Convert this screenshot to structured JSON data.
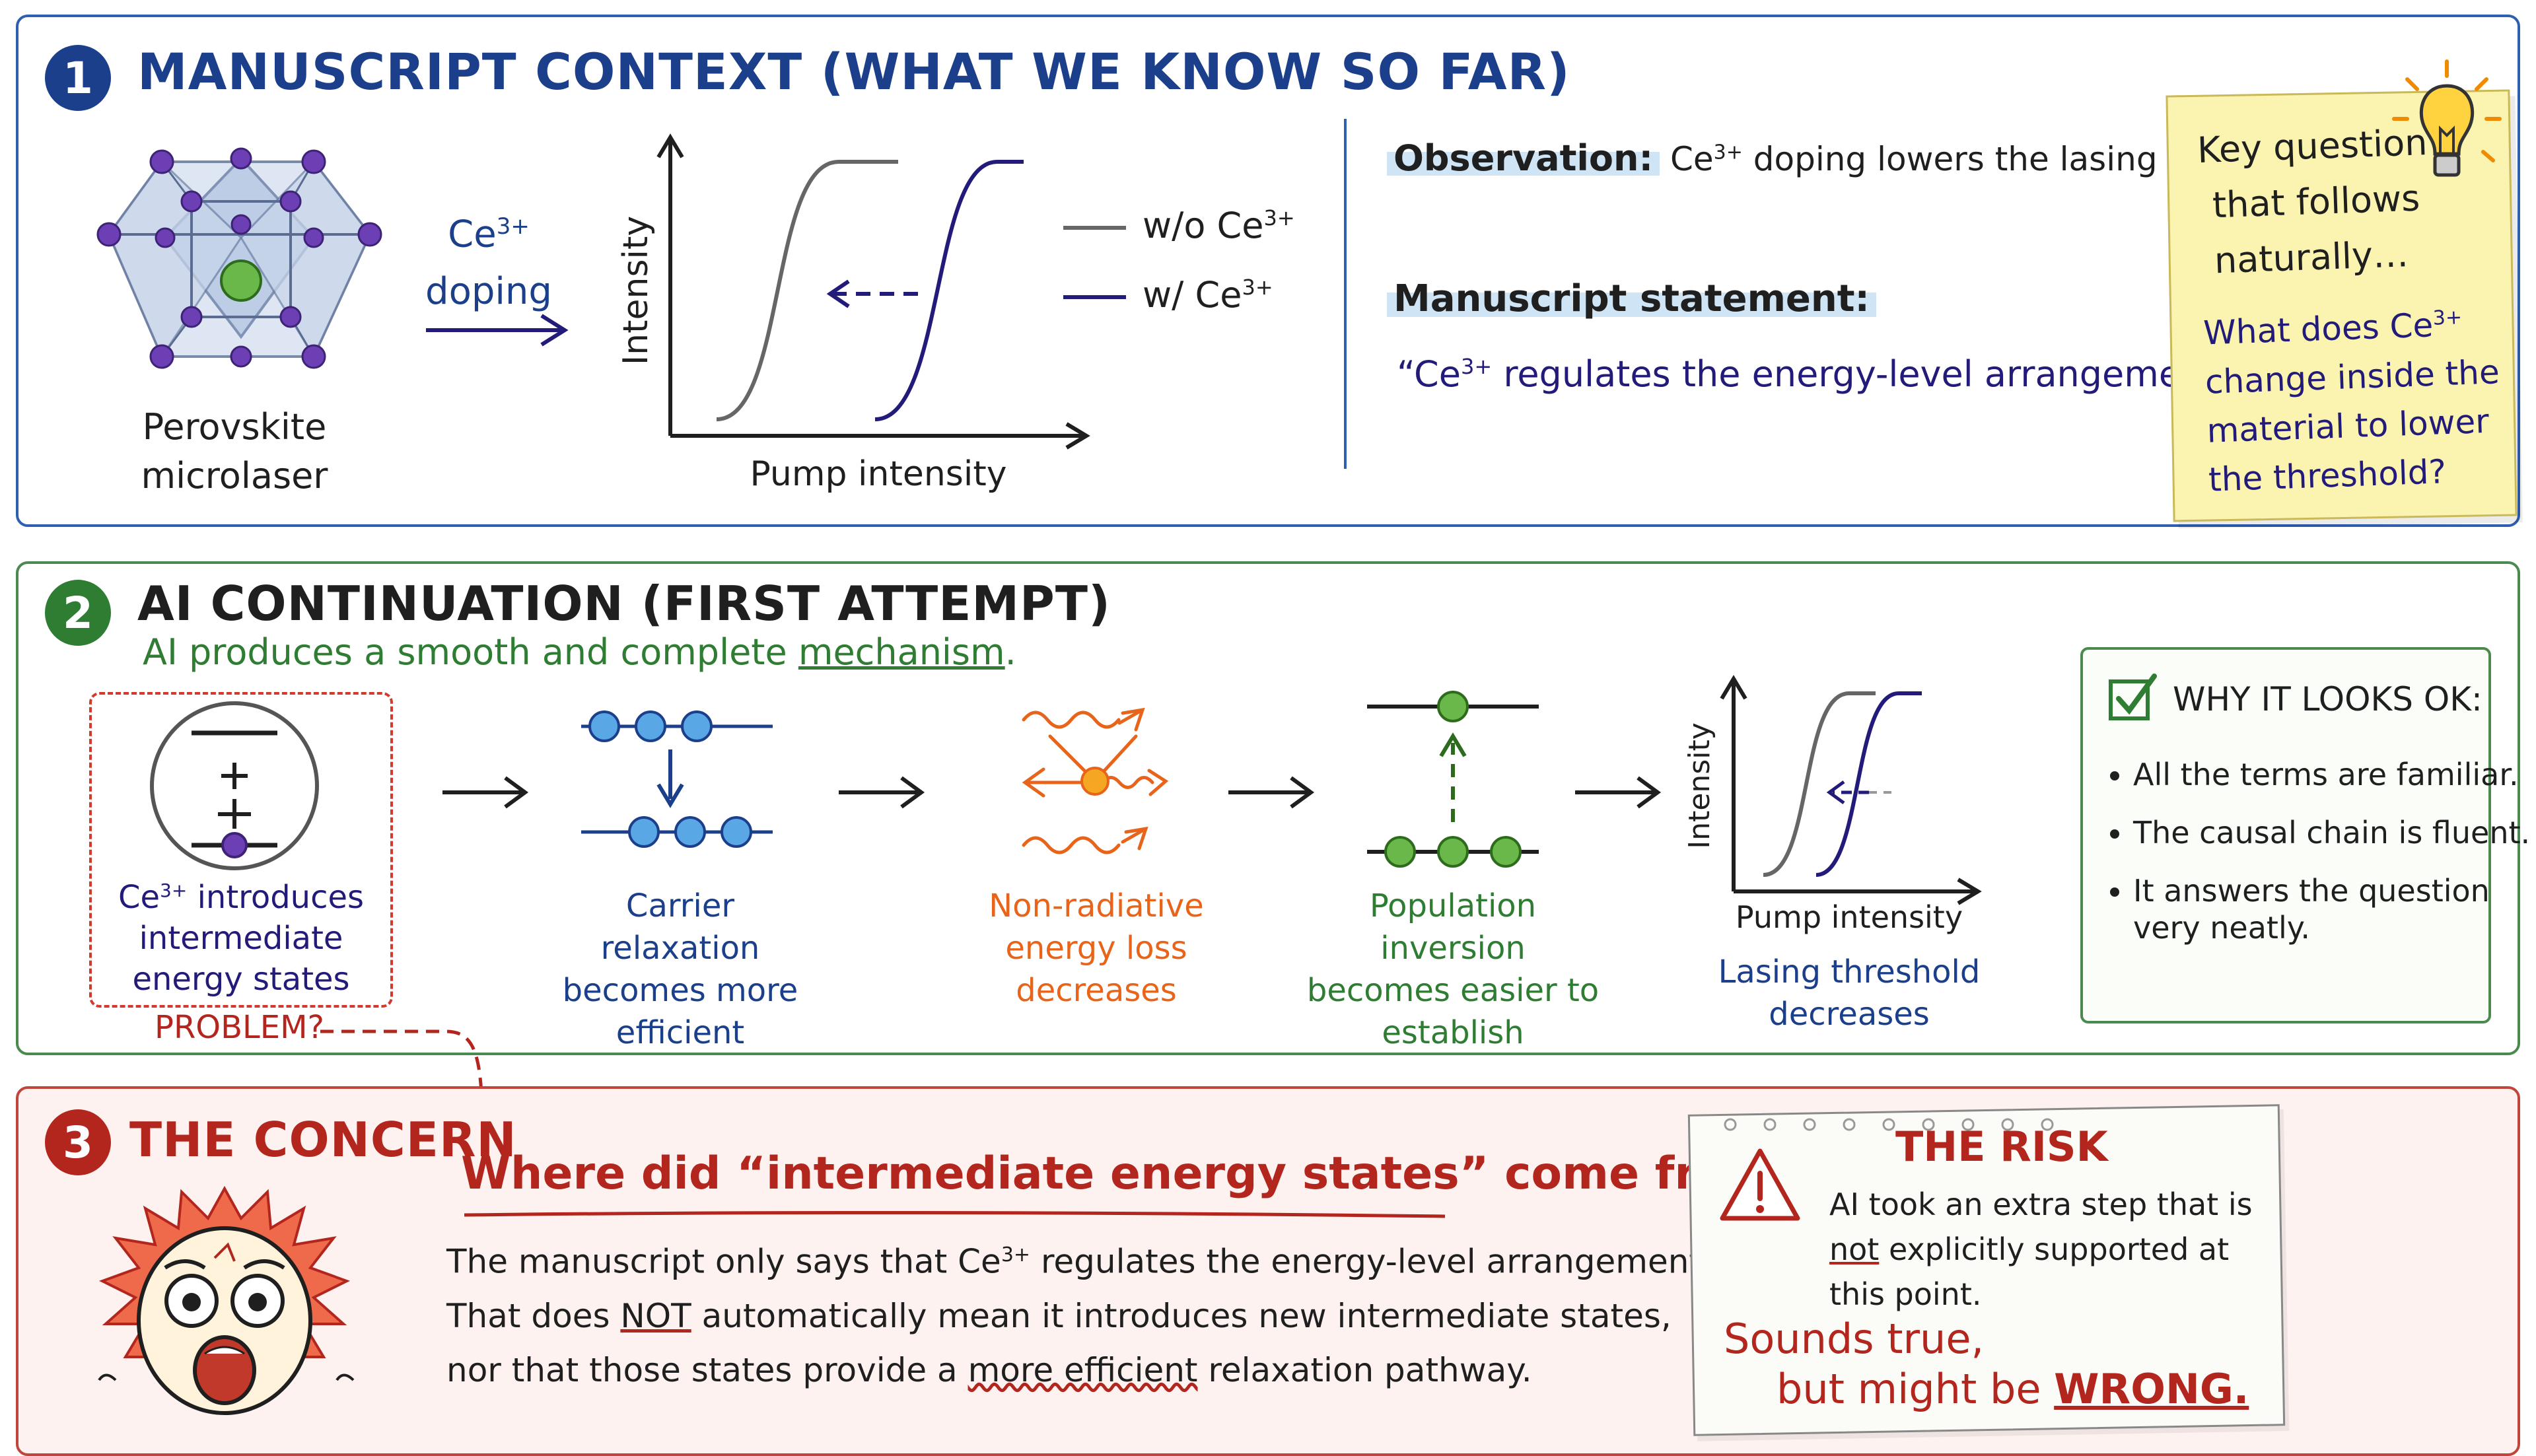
{
  "panel1": {
    "number": "1",
    "title": "MANUSCRIPT CONTEXT (WHAT WE KNOW SO FAR)",
    "crystal_label_1": "Perovskite",
    "crystal_label_2": "microlaser",
    "doping_label_1": "Ce",
    "doping_sup": "3+",
    "doping_label_2": "doping",
    "chart_ylabel": "Intensity",
    "chart_xlabel": "Pump intensity",
    "legend_wo": "w/o Ce",
    "legend_w": "w/ Ce",
    "legend_sup": "3+",
    "observation_label": "Observation:",
    "observation_text_1": "Ce",
    "observation_sup": "3+",
    "observation_text_2": " doping lowers the lasing threshold.",
    "statement_label": "Manuscript statement:",
    "statement_text_1": "“Ce",
    "statement_sup": "3+",
    "statement_text_2": " regulates the energy-level arrangement.”",
    "note_q1": "Key question",
    "note_q2": "that follows",
    "note_q3": "naturally…",
    "note_a1": "What does Ce",
    "note_a_sup": "3+",
    "note_a2": "change inside the",
    "note_a3": "material to lower",
    "note_a4": "the threshold?"
  },
  "panel2": {
    "number": "2",
    "title": "AI CONTINUATION (FIRST ATTEMPT)",
    "subtitle_1": "AI produces a smooth and complete ",
    "subtitle_2": "mechanism",
    "subtitle_3": ".",
    "step1_1": "Ce",
    "step1_sup": "3+",
    "step1_2": " introduces",
    "step1_3": "intermediate",
    "step1_4": "energy states",
    "problem": "PROBLEM?",
    "step2_1": "Carrier relaxation",
    "step2_2": "becomes more",
    "step2_3": "efficient",
    "step3_1": "Non-radiative",
    "step3_2": "energy loss",
    "step3_3": "decreases",
    "step4_1": "Population inversion",
    "step4_2": "becomes easier to",
    "step4_3": "establish",
    "mini_ylabel": "Intensity",
    "mini_xlabel": "Pump intensity",
    "step5_1": "Lasing threshold",
    "step5_2": "decreases",
    "why_title": "WHY IT LOOKS OK:",
    "why_items": [
      "All the terms are familiar.",
      "The causal chain is fluent.",
      "It answers the question"
    ],
    "why_item3_cont": "very neatly."
  },
  "panel3": {
    "number": "3",
    "title": "THE CONCERN",
    "headline": "Where did “intermediate energy states” come from?!",
    "body_1a": "The manuscript only says that Ce",
    "body_1_sup": "3+",
    "body_1b": " regulates the energy-level arrangement.",
    "body_2a": "That does ",
    "body_2_not": "NOT",
    "body_2b": " automatically mean it introduces new intermediate states,",
    "body_3a": "nor that those states provide a ",
    "body_3_em": "more efficient",
    "body_3b": " relaxation pathway.",
    "risk_title": "THE RISK",
    "risk_1": "AI took an extra step that is",
    "risk_2a": "not",
    "risk_2b": " explicitly supported at",
    "risk_3": "this point.",
    "risk_4": "Sounds true,",
    "risk_5a": "but might be ",
    "risk_5b": "WRONG."
  },
  "colors": {
    "blue": "#1b3f8b",
    "green": "#2f7d32",
    "red": "#b3261e",
    "navy": "#231b7a",
    "orange": "#e8641b",
    "note": "#fbf3b0"
  }
}
